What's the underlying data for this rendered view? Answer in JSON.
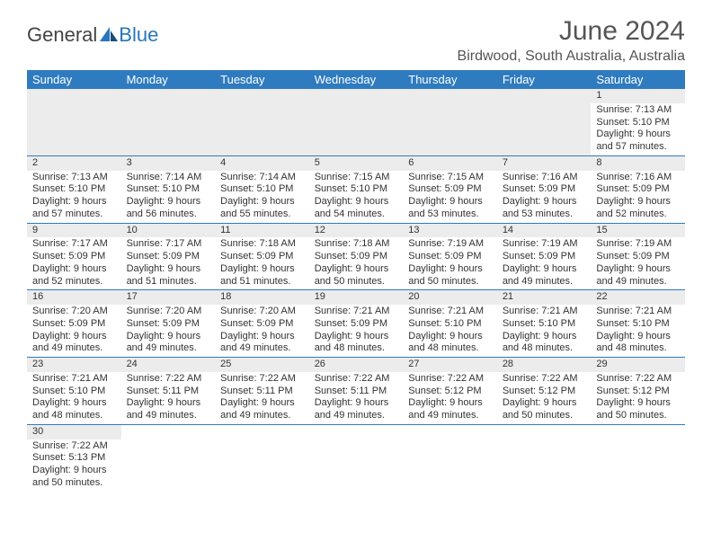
{
  "logo": {
    "text_general": "General",
    "text_blue": "Blue"
  },
  "title": "June 2024",
  "location": "Birdwood, South Australia, Australia",
  "headers": [
    "Sunday",
    "Monday",
    "Tuesday",
    "Wednesday",
    "Thursday",
    "Friday",
    "Saturday"
  ],
  "colors": {
    "header_bg": "#2f7bbf",
    "header_fg": "#ffffff",
    "daynum_bg": "#ececec",
    "rule": "#2f7bbf",
    "text": "#333333",
    "title": "#555555"
  },
  "weeks": [
    [
      null,
      null,
      null,
      null,
      null,
      null,
      {
        "n": "1",
        "sunrise": "Sunrise: 7:13 AM",
        "sunset": "Sunset: 5:10 PM",
        "day1": "Daylight: 9 hours",
        "day2": "and 57 minutes."
      }
    ],
    [
      {
        "n": "2",
        "sunrise": "Sunrise: 7:13 AM",
        "sunset": "Sunset: 5:10 PM",
        "day1": "Daylight: 9 hours",
        "day2": "and 57 minutes."
      },
      {
        "n": "3",
        "sunrise": "Sunrise: 7:14 AM",
        "sunset": "Sunset: 5:10 PM",
        "day1": "Daylight: 9 hours",
        "day2": "and 56 minutes."
      },
      {
        "n": "4",
        "sunrise": "Sunrise: 7:14 AM",
        "sunset": "Sunset: 5:10 PM",
        "day1": "Daylight: 9 hours",
        "day2": "and 55 minutes."
      },
      {
        "n": "5",
        "sunrise": "Sunrise: 7:15 AM",
        "sunset": "Sunset: 5:10 PM",
        "day1": "Daylight: 9 hours",
        "day2": "and 54 minutes."
      },
      {
        "n": "6",
        "sunrise": "Sunrise: 7:15 AM",
        "sunset": "Sunset: 5:09 PM",
        "day1": "Daylight: 9 hours",
        "day2": "and 53 minutes."
      },
      {
        "n": "7",
        "sunrise": "Sunrise: 7:16 AM",
        "sunset": "Sunset: 5:09 PM",
        "day1": "Daylight: 9 hours",
        "day2": "and 53 minutes."
      },
      {
        "n": "8",
        "sunrise": "Sunrise: 7:16 AM",
        "sunset": "Sunset: 5:09 PM",
        "day1": "Daylight: 9 hours",
        "day2": "and 52 minutes."
      }
    ],
    [
      {
        "n": "9",
        "sunrise": "Sunrise: 7:17 AM",
        "sunset": "Sunset: 5:09 PM",
        "day1": "Daylight: 9 hours",
        "day2": "and 52 minutes."
      },
      {
        "n": "10",
        "sunrise": "Sunrise: 7:17 AM",
        "sunset": "Sunset: 5:09 PM",
        "day1": "Daylight: 9 hours",
        "day2": "and 51 minutes."
      },
      {
        "n": "11",
        "sunrise": "Sunrise: 7:18 AM",
        "sunset": "Sunset: 5:09 PM",
        "day1": "Daylight: 9 hours",
        "day2": "and 51 minutes."
      },
      {
        "n": "12",
        "sunrise": "Sunrise: 7:18 AM",
        "sunset": "Sunset: 5:09 PM",
        "day1": "Daylight: 9 hours",
        "day2": "and 50 minutes."
      },
      {
        "n": "13",
        "sunrise": "Sunrise: 7:19 AM",
        "sunset": "Sunset: 5:09 PM",
        "day1": "Daylight: 9 hours",
        "day2": "and 50 minutes."
      },
      {
        "n": "14",
        "sunrise": "Sunrise: 7:19 AM",
        "sunset": "Sunset: 5:09 PM",
        "day1": "Daylight: 9 hours",
        "day2": "and 49 minutes."
      },
      {
        "n": "15",
        "sunrise": "Sunrise: 7:19 AM",
        "sunset": "Sunset: 5:09 PM",
        "day1": "Daylight: 9 hours",
        "day2": "and 49 minutes."
      }
    ],
    [
      {
        "n": "16",
        "sunrise": "Sunrise: 7:20 AM",
        "sunset": "Sunset: 5:09 PM",
        "day1": "Daylight: 9 hours",
        "day2": "and 49 minutes."
      },
      {
        "n": "17",
        "sunrise": "Sunrise: 7:20 AM",
        "sunset": "Sunset: 5:09 PM",
        "day1": "Daylight: 9 hours",
        "day2": "and 49 minutes."
      },
      {
        "n": "18",
        "sunrise": "Sunrise: 7:20 AM",
        "sunset": "Sunset: 5:09 PM",
        "day1": "Daylight: 9 hours",
        "day2": "and 49 minutes."
      },
      {
        "n": "19",
        "sunrise": "Sunrise: 7:21 AM",
        "sunset": "Sunset: 5:09 PM",
        "day1": "Daylight: 9 hours",
        "day2": "and 48 minutes."
      },
      {
        "n": "20",
        "sunrise": "Sunrise: 7:21 AM",
        "sunset": "Sunset: 5:10 PM",
        "day1": "Daylight: 9 hours",
        "day2": "and 48 minutes."
      },
      {
        "n": "21",
        "sunrise": "Sunrise: 7:21 AM",
        "sunset": "Sunset: 5:10 PM",
        "day1": "Daylight: 9 hours",
        "day2": "and 48 minutes."
      },
      {
        "n": "22",
        "sunrise": "Sunrise: 7:21 AM",
        "sunset": "Sunset: 5:10 PM",
        "day1": "Daylight: 9 hours",
        "day2": "and 48 minutes."
      }
    ],
    [
      {
        "n": "23",
        "sunrise": "Sunrise: 7:21 AM",
        "sunset": "Sunset: 5:10 PM",
        "day1": "Daylight: 9 hours",
        "day2": "and 48 minutes."
      },
      {
        "n": "24",
        "sunrise": "Sunrise: 7:22 AM",
        "sunset": "Sunset: 5:11 PM",
        "day1": "Daylight: 9 hours",
        "day2": "and 49 minutes."
      },
      {
        "n": "25",
        "sunrise": "Sunrise: 7:22 AM",
        "sunset": "Sunset: 5:11 PM",
        "day1": "Daylight: 9 hours",
        "day2": "and 49 minutes."
      },
      {
        "n": "26",
        "sunrise": "Sunrise: 7:22 AM",
        "sunset": "Sunset: 5:11 PM",
        "day1": "Daylight: 9 hours",
        "day2": "and 49 minutes."
      },
      {
        "n": "27",
        "sunrise": "Sunrise: 7:22 AM",
        "sunset": "Sunset: 5:12 PM",
        "day1": "Daylight: 9 hours",
        "day2": "and 49 minutes."
      },
      {
        "n": "28",
        "sunrise": "Sunrise: 7:22 AM",
        "sunset": "Sunset: 5:12 PM",
        "day1": "Daylight: 9 hours",
        "day2": "and 50 minutes."
      },
      {
        "n": "29",
        "sunrise": "Sunrise: 7:22 AM",
        "sunset": "Sunset: 5:12 PM",
        "day1": "Daylight: 9 hours",
        "day2": "and 50 minutes."
      }
    ],
    [
      {
        "n": "30",
        "sunrise": "Sunrise: 7:22 AM",
        "sunset": "Sunset: 5:13 PM",
        "day1": "Daylight: 9 hours",
        "day2": "and 50 minutes."
      },
      null,
      null,
      null,
      null,
      null,
      null
    ]
  ]
}
